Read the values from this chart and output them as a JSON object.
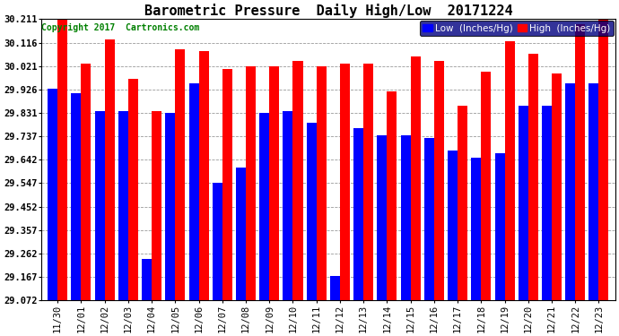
{
  "title": "Barometric Pressure  Daily High/Low  20171224",
  "copyright": "Copyright 2017  Cartronics.com",
  "legend_low": "Low  (Inches/Hg)",
  "legend_high": "High  (Inches/Hg)",
  "color_low": "#0000ff",
  "color_high": "#ff0000",
  "background_color": "#ffffff",
  "ylim_min": 29.072,
  "ylim_max": 30.211,
  "yticks": [
    29.072,
    29.167,
    29.262,
    29.357,
    29.452,
    29.547,
    29.642,
    29.737,
    29.831,
    29.926,
    30.021,
    30.116,
    30.211
  ],
  "dates": [
    "11/30",
    "12/01",
    "12/02",
    "12/03",
    "12/04",
    "12/05",
    "12/06",
    "12/07",
    "12/08",
    "12/09",
    "12/10",
    "12/11",
    "12/12",
    "12/13",
    "12/14",
    "12/15",
    "12/16",
    "12/17",
    "12/18",
    "12/19",
    "12/20",
    "12/21",
    "12/22",
    "12/23"
  ],
  "low_values": [
    29.93,
    29.91,
    29.84,
    29.84,
    29.24,
    29.83,
    29.95,
    29.55,
    29.61,
    29.83,
    29.84,
    29.79,
    29.17,
    29.77,
    29.74,
    29.74,
    29.73,
    29.68,
    29.65,
    29.67,
    29.86,
    29.86,
    29.95,
    29.95
  ],
  "high_values": [
    30.21,
    30.03,
    30.13,
    29.97,
    29.84,
    30.09,
    30.08,
    30.01,
    30.02,
    30.02,
    30.04,
    30.02,
    30.03,
    30.03,
    29.92,
    30.06,
    30.04,
    29.86,
    30.0,
    30.12,
    30.07,
    29.99,
    30.19,
    30.21
  ],
  "bar_width": 0.42,
  "title_fontsize": 11,
  "tick_fontsize": 7.5,
  "legend_fontsize": 7.5,
  "copyright_fontsize": 7
}
